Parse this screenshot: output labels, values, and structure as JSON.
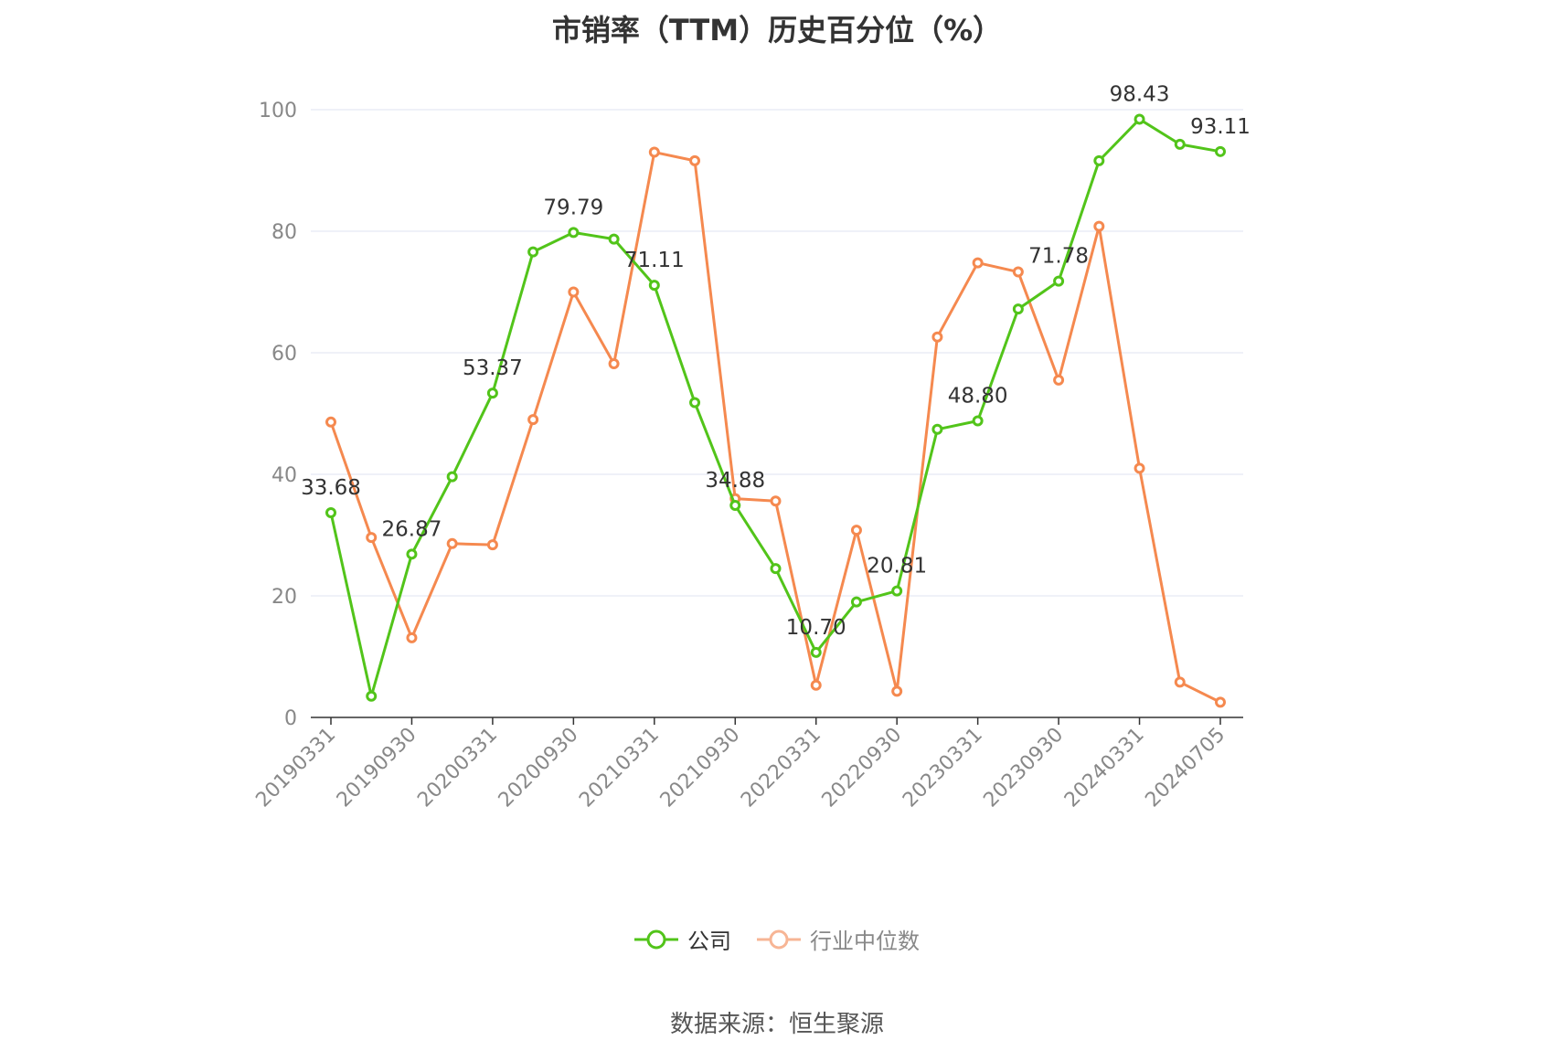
{
  "chart_data": {
    "type": "line",
    "title": "市销率（TTM）历史百分位（%）",
    "x": [
      "20190331",
      "20190630",
      "20190930",
      "20191231",
      "20200331",
      "20200630",
      "20200930",
      "20201231",
      "20210331",
      "20210630",
      "20210930",
      "20211231",
      "20220331",
      "20220630",
      "20220930",
      "20221231",
      "20230331",
      "20230630",
      "20230930",
      "20231231",
      "20240331",
      "20240630",
      "20240705"
    ],
    "x_tick_labels": [
      "20190331",
      "20190930",
      "20200331",
      "20200930",
      "20210331",
      "20210930",
      "20220331",
      "20220930",
      "20230331",
      "20230930",
      "20240331",
      "20240705"
    ],
    "ylim": [
      0,
      100
    ],
    "y_ticks": [
      "0",
      "20",
      "40",
      "60",
      "80",
      "100"
    ],
    "grid": true,
    "legend_position": "bottom-center",
    "series": [
      {
        "name": "公司",
        "color": "#52c41a",
        "values": [
          33.68,
          3.5,
          26.87,
          39.6,
          53.37,
          76.6,
          79.79,
          78.7,
          71.11,
          51.8,
          34.88,
          24.5,
          10.7,
          19.0,
          20.81,
          47.4,
          48.8,
          67.2,
          71.78,
          91.6,
          98.43,
          94.3,
          93.11
        ],
        "data_labels": {
          "0": "33.68",
          "2": "26.87",
          "4": "53.37",
          "6": "79.79",
          "8": "71.11",
          "10": "34.88",
          "12": "10.70",
          "14": "20.81",
          "16": "48.80",
          "18": "71.78",
          "20": "98.43",
          "22": "93.11"
        }
      },
      {
        "name": "行业中位数",
        "color": "#f5894f",
        "values": [
          48.6,
          29.6,
          13.1,
          28.6,
          28.4,
          49.0,
          70.0,
          58.2,
          93.0,
          91.6,
          36.0,
          35.6,
          5.3,
          30.8,
          4.3,
          62.6,
          74.8,
          73.3,
          55.5,
          80.8,
          41.0,
          5.8,
          2.5
        ]
      }
    ]
  },
  "legend": {
    "company_label": "公司",
    "industry_label": "行业中位数"
  },
  "source": "数据来源：恒生聚源"
}
